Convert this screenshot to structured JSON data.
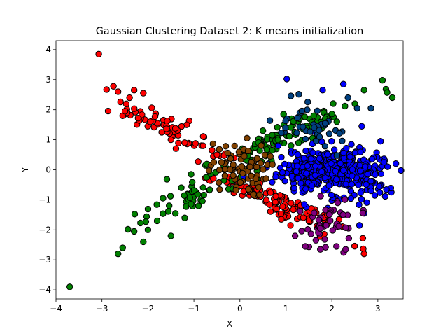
{
  "chart_data": {
    "type": "scatter",
    "title": "Gaussian Clustering Dataset 2: K means initialization",
    "xlabel": "X",
    "ylabel": "Y",
    "xlim": [
      -4.0,
      3.55
    ],
    "ylim": [
      -4.3,
      4.3
    ],
    "xticks": [
      -4,
      -3,
      -2,
      -1,
      0,
      1,
      2,
      3
    ],
    "yticks": [
      -4,
      -3,
      -2,
      -1,
      0,
      1,
      2,
      3,
      4
    ],
    "grid": false,
    "legend": "none",
    "marker_edge_color": "#000000",
    "clusters": [
      {
        "color": "#ff0000",
        "center": [
          -1.6,
          1.4
        ],
        "spread": 0.9,
        "axis": [
          -0.82,
          0.57
        ],
        "width": 0.18,
        "count": 170,
        "extra_centers": [
          [
            0.6,
            -0.9
          ],
          [
            1.1,
            -1.3
          ]
        ],
        "points": [
          [
            -3.07,
            3.85
          ],
          [
            -2.9,
            2.67
          ],
          [
            -2.75,
            2.78
          ],
          [
            -2.65,
            2.6
          ],
          [
            -2.4,
            2.4
          ],
          [
            -2.3,
            2.65
          ],
          [
            -2.55,
            1.8
          ],
          [
            -2.5,
            1.95
          ],
          [
            -2.1,
            2.55
          ],
          [
            -1.95,
            1.6
          ],
          [
            -1.7,
            1.25
          ],
          [
            -1.5,
            1.0
          ],
          [
            -1.2,
            0.9
          ],
          [
            -0.8,
            0.8
          ],
          [
            -0.5,
            0.5
          ],
          [
            0.3,
            -0.5
          ],
          [
            0.8,
            -1.3
          ],
          [
            0.9,
            -1.65
          ],
          [
            1.1,
            -1.85
          ],
          [
            1.5,
            -1.7
          ],
          [
            2.7,
            -2.8
          ]
        ]
      },
      {
        "color": "#008000",
        "center": [
          -1.0,
          -0.9
        ],
        "spread": 0.9,
        "axis": [
          0.82,
          0.57
        ],
        "width": 0.18,
        "count": 150,
        "extra_centers": [
          [
            0.7,
            0.9
          ],
          [
            1.1,
            1.3
          ]
        ],
        "points": [
          [
            -3.7,
            -3.9
          ],
          [
            -2.65,
            -2.8
          ],
          [
            -2.55,
            -2.6
          ],
          [
            -2.3,
            -2.05
          ],
          [
            -2.1,
            -2.4
          ],
          [
            -2.0,
            -2.0
          ],
          [
            -1.8,
            -1.7
          ],
          [
            -1.5,
            -2.2
          ],
          [
            -1.2,
            -1.6
          ],
          [
            -0.9,
            -1.2
          ],
          [
            0.5,
            1.3
          ],
          [
            0.95,
            1.85
          ],
          [
            1.3,
            1.7
          ],
          [
            2.7,
            2.65
          ],
          [
            3.1,
            2.98
          ],
          [
            3.2,
            2.57
          ]
        ]
      },
      {
        "color": "#0000ff",
        "center": [
          2.05,
          -0.05
        ],
        "spread": 0.42,
        "axis": [
          0.0,
          1.0
        ],
        "width": 0.6,
        "count": 430,
        "extra_centers": [],
        "points": [
          [
            1.02,
            3.02
          ],
          [
            1.8,
            2.65
          ],
          [
            2.25,
            2.85
          ],
          [
            2.65,
            1.45
          ],
          [
            2.85,
            -0.7
          ],
          [
            2.6,
            -1.85
          ],
          [
            2.7,
            -1.45
          ]
        ]
      },
      {
        "color": "#804000",
        "center": [
          -0.05,
          0.0
        ],
        "spread": 0.32,
        "axis": [
          1.0,
          0.0
        ],
        "width": 0.45,
        "count": 70,
        "extra_centers": [],
        "points": [
          [
            -0.4,
            0.25
          ],
          [
            0.35,
            -0.3
          ]
        ]
      },
      {
        "color": "#004080",
        "center": [
          1.55,
          1.45
        ],
        "spread": 0.3,
        "axis": [
          0.8,
          0.6
        ],
        "width": 0.5,
        "count": 45,
        "extra_centers": [],
        "points": [
          [
            2.85,
            2.05
          ],
          [
            2.55,
            2.05
          ],
          [
            2.35,
            2.4
          ]
        ]
      },
      {
        "color": "#800080",
        "center": [
          1.9,
          -1.9
        ],
        "spread": 0.35,
        "axis": [
          0.8,
          -0.6
        ],
        "width": 0.5,
        "count": 45,
        "extra_centers": [],
        "points": [
          [
            1.75,
            -2.65
          ],
          [
            2.1,
            -2.55
          ],
          [
            2.3,
            -2.65
          ],
          [
            1.2,
            -2.2
          ]
        ]
      }
    ]
  }
}
